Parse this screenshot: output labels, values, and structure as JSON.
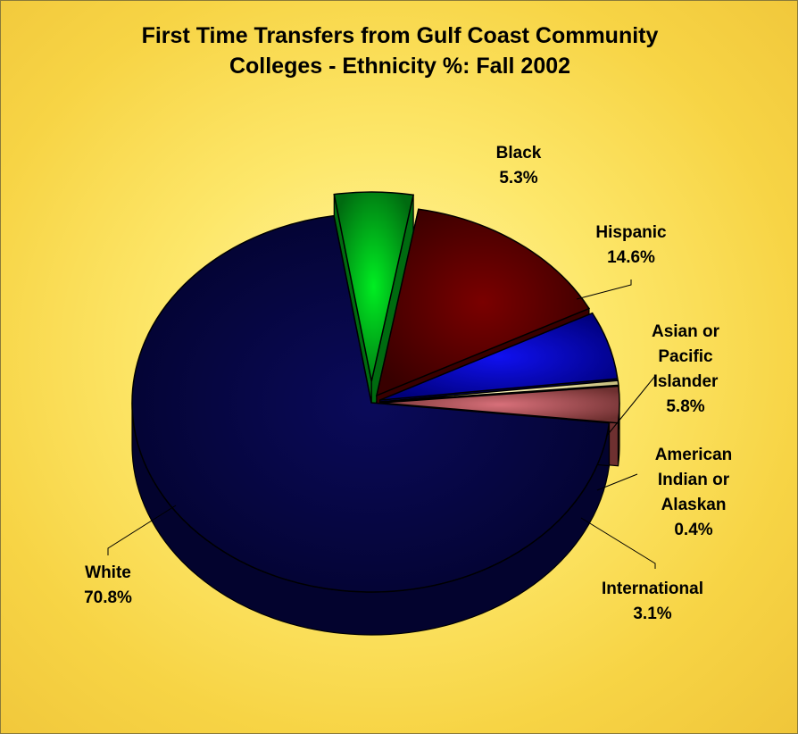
{
  "chart_data": {
    "type": "pie",
    "style": "3d-exploded",
    "title_lines": [
      "First Time Transfers from Gulf Coast Community",
      "Colleges - Ethnicity %:  Fall 2002"
    ],
    "slices": [
      {
        "name": "Black",
        "label_lines": [
          "Black"
        ],
        "value": 5.3,
        "value_label": "5.3%",
        "color": "#00ee22",
        "side_color": "#006b10"
      },
      {
        "name": "Hispanic",
        "label_lines": [
          "Hispanic"
        ],
        "value": 14.6,
        "value_label": "14.6%",
        "color": "#7a0000",
        "side_color": "#380000"
      },
      {
        "name": "Asian or Pacific Islander",
        "label_lines": [
          "Asian or",
          "Pacific",
          "Islander"
        ],
        "value": 5.8,
        "value_label": "5.8%",
        "color": "#1010f0",
        "side_color": "#00007a"
      },
      {
        "name": "American Indian or Alaskan",
        "label_lines": [
          "American",
          "Indian or",
          "Alaskan"
        ],
        "value": 0.4,
        "value_label": "0.4%",
        "color": "#fff7bb",
        "side_color": "#c8bf80"
      },
      {
        "name": "International",
        "label_lines": [
          "International"
        ],
        "value": 3.1,
        "value_label": "3.1%",
        "color": "#d8707a",
        "side_color": "#6e3030"
      },
      {
        "name": "White",
        "label_lines": [
          "White"
        ],
        "value": 70.8,
        "value_label": "70.8%",
        "color": "#0a0a5a",
        "side_color": "#03032e"
      }
    ],
    "background_color": "#fbe060"
  }
}
